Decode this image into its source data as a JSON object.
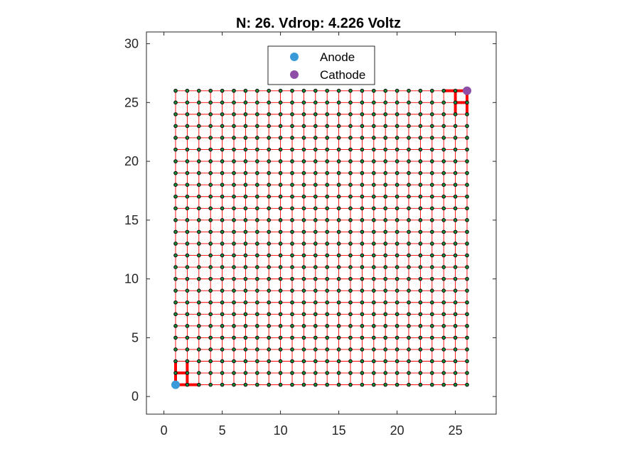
{
  "chart_data": {
    "type": "scatter",
    "title": "N: 26. Vdrop: 4.226 Voltz",
    "xlabel": "",
    "ylabel": "",
    "xlim": [
      -1.5,
      28.5
    ],
    "ylim": [
      -1.5,
      31
    ],
    "xticks": [
      0,
      5,
      10,
      15,
      20,
      25
    ],
    "yticks": [
      0,
      5,
      10,
      15,
      20,
      25,
      30
    ],
    "grid": false,
    "legend_position": "top-center",
    "grid_nodes": {
      "n": 26,
      "x_range": [
        1,
        26
      ],
      "y_range": [
        1,
        26
      ],
      "node_color": "#1a8f3a",
      "node_edge_color": "#000000",
      "wire_color": "#ff0000"
    },
    "highlight_paths": [
      [
        [
          1,
          1
        ],
        [
          1,
          2
        ],
        [
          2,
          2
        ],
        [
          2,
          1
        ],
        [
          1,
          1
        ]
      ],
      [
        [
          2,
          1
        ],
        [
          3,
          1
        ]
      ],
      [
        [
          2,
          2
        ],
        [
          2,
          3
        ]
      ],
      [
        [
          1,
          2
        ],
        [
          1,
          3
        ]
      ],
      [
        [
          26,
          26
        ],
        [
          26,
          25
        ],
        [
          25,
          25
        ],
        [
          25,
          26
        ],
        [
          26,
          26
        ]
      ],
      [
        [
          25,
          26
        ],
        [
          24,
          26
        ]
      ],
      [
        [
          26,
          25
        ],
        [
          26,
          24
        ]
      ],
      [
        [
          25,
          25
        ],
        [
          25,
          24
        ]
      ]
    ],
    "series": [
      {
        "name": "Anode",
        "x": [
          1
        ],
        "y": [
          1
        ],
        "color": "#3a9ad9"
      },
      {
        "name": "Cathode",
        "x": [
          26
        ],
        "y": [
          26
        ],
        "color": "#8e4ea6"
      }
    ]
  }
}
